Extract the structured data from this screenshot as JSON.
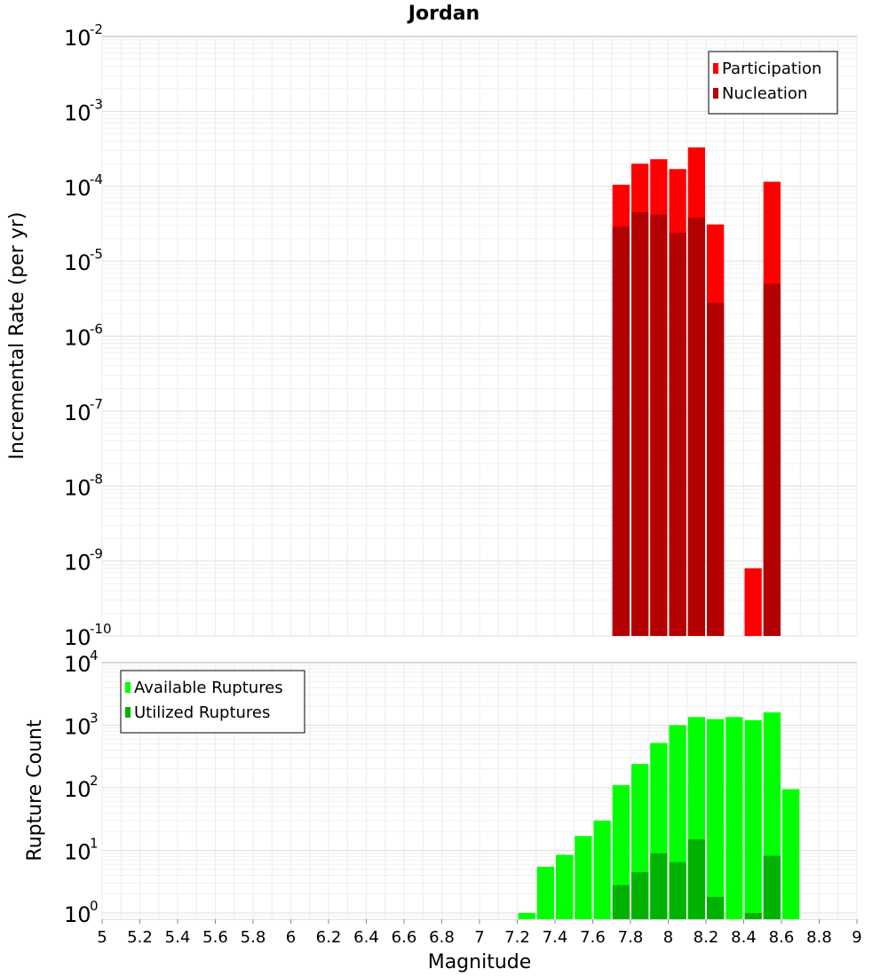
{
  "chart_data": [
    {
      "type": "bar",
      "title": "Jordan",
      "xlabel": "",
      "ylabel": "Incremental Rate (per yr)",
      "xlim": [
        5,
        9
      ],
      "ylim_log10": [
        -10,
        -2
      ],
      "y_scale": "log",
      "y_tick_exponents": [
        -10,
        -9,
        -8,
        -7,
        -6,
        -5,
        -4,
        -3,
        -2
      ],
      "bin_width": 0.1,
      "legend_position": "top-right",
      "series": [
        {
          "name": "Participation",
          "color": "#ff0000",
          "x": [
            7.75,
            7.85,
            7.95,
            8.05,
            8.15,
            8.25,
            8.45,
            8.55
          ],
          "values": [
            0.000105,
            0.0002,
            0.00023,
            0.00017,
            0.00033,
            3.1e-05,
            8e-10,
            0.000115
          ]
        },
        {
          "name": "Nucleation",
          "color": "#b30000",
          "x": [
            7.75,
            7.85,
            7.95,
            8.05,
            8.15,
            8.25,
            8.55
          ],
          "values": [
            2.9e-05,
            4.5e-05,
            4.2e-05,
            2.4e-05,
            3.8e-05,
            2.8e-06,
            5e-06
          ]
        }
      ]
    },
    {
      "type": "bar",
      "title": "",
      "xlabel": "Magnitude",
      "ylabel": "Rupture Count",
      "xlim": [
        5,
        9
      ],
      "ylim_log10": [
        -0.1,
        4
      ],
      "y_scale": "log",
      "y_tick_exponents": [
        0,
        1,
        2,
        3,
        4
      ],
      "x_ticks": [
        "5",
        "5.2",
        "5.4",
        "5.6",
        "5.8",
        "6",
        "6.2",
        "6.4",
        "6.6",
        "6.8",
        "7",
        "7.2",
        "7.4",
        "7.6",
        "7.8",
        "8",
        "8.2",
        "8.4",
        "8.6",
        "8.8",
        "9"
      ],
      "bin_width": 0.1,
      "legend_position": "top-left",
      "series": [
        {
          "name": "Available Ruptures",
          "color": "#00ff00",
          "x": [
            7.25,
            7.35,
            7.45,
            7.55,
            7.65,
            7.75,
            7.85,
            7.95,
            8.05,
            8.15,
            8.25,
            8.35,
            8.45,
            8.55,
            8.65
          ],
          "values": [
            1,
            5.5,
            8.5,
            17,
            30,
            110,
            240,
            520,
            1000,
            1350,
            1250,
            1350,
            1200,
            1600,
            95
          ]
        },
        {
          "name": "Utilized Ruptures",
          "color": "#00b300",
          "x": [
            7.75,
            7.85,
            7.95,
            8.05,
            8.15,
            8.25,
            8.45,
            8.55
          ],
          "values": [
            2.8,
            4.5,
            9,
            6.5,
            15,
            1.8,
            1,
            8.2
          ]
        }
      ]
    }
  ]
}
